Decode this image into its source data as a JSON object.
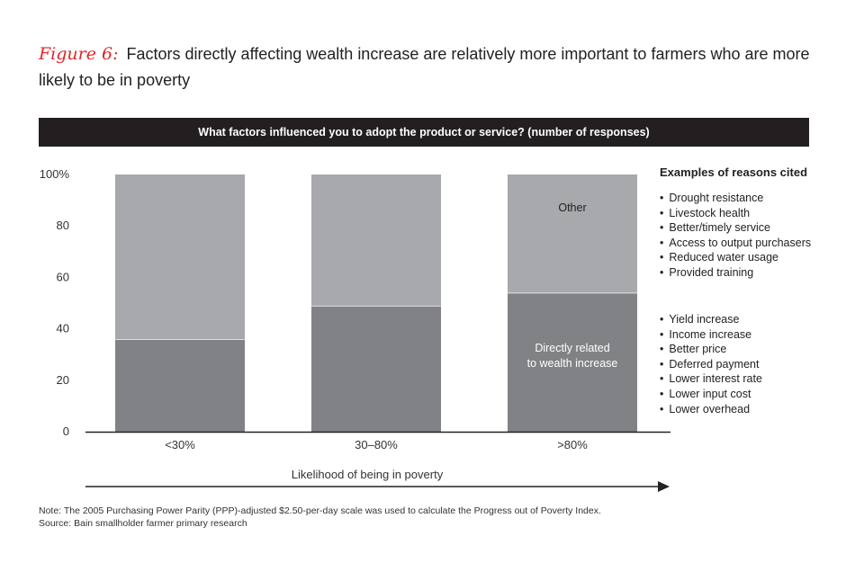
{
  "figure": {
    "label": "Figure 6:",
    "title": "Factors directly affecting wealth increase are relatively more important to farmers who are more likely to be in poverty"
  },
  "banner": "What factors influenced you to adopt the product or service? (number of responses)",
  "chart_data": {
    "type": "bar",
    "stacked": true,
    "percent": true,
    "title": "What factors influenced you to adopt the product or service? (number of responses)",
    "categories": [
      "<30%",
      "30–80%",
      ">80%"
    ],
    "series": [
      {
        "name": "Directly related to wealth increase",
        "values": [
          36,
          49,
          54
        ],
        "color": "#808285"
      },
      {
        "name": "Other",
        "values": [
          64,
          51,
          46
        ],
        "color": "#a7a9ac"
      }
    ],
    "y_ticks": [
      "100%",
      "80",
      "60",
      "40",
      "20",
      "0"
    ],
    "ylim": [
      0,
      100
    ],
    "xlabel": "Likelihood of being in poverty",
    "segment_labels": {
      "other": "Other",
      "direct_line1": "Directly related",
      "direct_line2": "to wealth increase"
    },
    "grid": false,
    "legend": "in-bar labels"
  },
  "reasons": {
    "title": "Examples of reasons cited",
    "other_list": [
      "Drought resistance",
      "Livestock health",
      "Better/timely service",
      "Access to output purchasers",
      "Reduced water usage",
      "Provided training"
    ],
    "wealth_list": [
      "Yield increase",
      "Income increase",
      "Better price",
      "Deferred payment",
      "Lower interest rate",
      "Lower input cost",
      "Lower overhead"
    ]
  },
  "notes": {
    "note": "Note: The 2005 Purchasing Power Parity (PPP)-adjusted $2.50-per-day scale was used to calculate the Progress out of Poverty Index.",
    "source": "Source: Bain smallholder farmer primary research"
  }
}
